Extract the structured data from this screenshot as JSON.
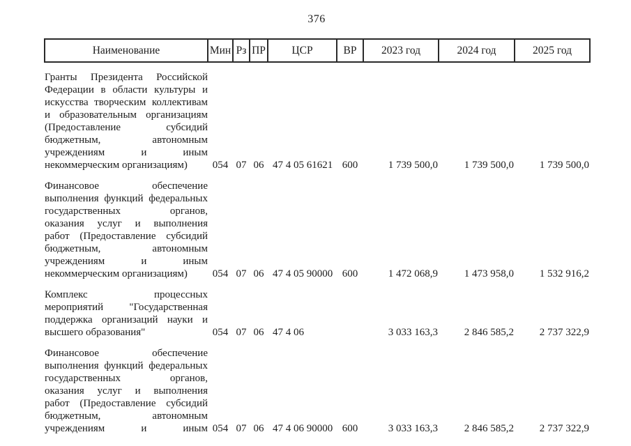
{
  "page": {
    "number": "376"
  },
  "colors": {
    "background": "#ffffff",
    "text": "#1c1c1c",
    "table_border": "#2a2a2a"
  },
  "table": {
    "headers": [
      "Наименование",
      "Мин",
      "Рз",
      "ПР",
      "ЦСР",
      "ВР",
      "2023 год",
      "2024 год",
      "2025 год"
    ],
    "rows": [
      {
        "name_lines": [
          "Гранты Президента Российской",
          "Федерации в области культуры и",
          "искусства творческим коллективам",
          "и образовательным организациям",
          "(Предоставление субсидий",
          "бюджетным, автономным",
          "учреждениям и иным",
          "некоммерческим организациям)"
        ],
        "continues_next_page": false,
        "min": "054",
        "rz": "07",
        "pr": "06",
        "csr": "47 4 05 61621",
        "vr": "600",
        "y2023": "1 739 500,0",
        "y2024": "1 739 500,0",
        "y2025": "1 739 500,0"
      },
      {
        "name_lines": [
          "Финансовое обеспечение",
          "выполнения функций федеральных",
          "государственных органов,",
          "оказания услуг и выполнения",
          "работ (Предоставление субсидий",
          "бюджетным, автономным",
          "учреждениям и иным",
          "некоммерческим организациям)"
        ],
        "continues_next_page": false,
        "min": "054",
        "rz": "07",
        "pr": "06",
        "csr": "47 4 05 90000",
        "vr": "600",
        "y2023": "1 472 068,9",
        "y2024": "1 473 958,0",
        "y2025": "1 532 916,2"
      },
      {
        "name_lines": [
          "Комплекс процессных",
          "мероприятий \"Государственная",
          "поддержка организаций науки и",
          "высшего образования\""
        ],
        "continues_next_page": false,
        "min": "054",
        "rz": "07",
        "pr": "06",
        "csr": "47 4 06",
        "vr": "",
        "y2023": "3 033 163,3",
        "y2024": "2 846 585,2",
        "y2025": "2 737 322,9"
      },
      {
        "name_lines": [
          "Финансовое обеспечение",
          "выполнения функций федеральных",
          "государственных органов,",
          "оказания услуг и выполнения",
          "работ (Предоставление субсидий",
          "бюджетным, автономным",
          "учреждениям и иным"
        ],
        "continues_next_page": true,
        "min": "054",
        "rz": "07",
        "pr": "06",
        "csr": "47 4 06 90000",
        "vr": "600",
        "y2023": "3 033 163,3",
        "y2024": "2 846 585,2",
        "y2025": "2 737 322,9"
      }
    ]
  }
}
